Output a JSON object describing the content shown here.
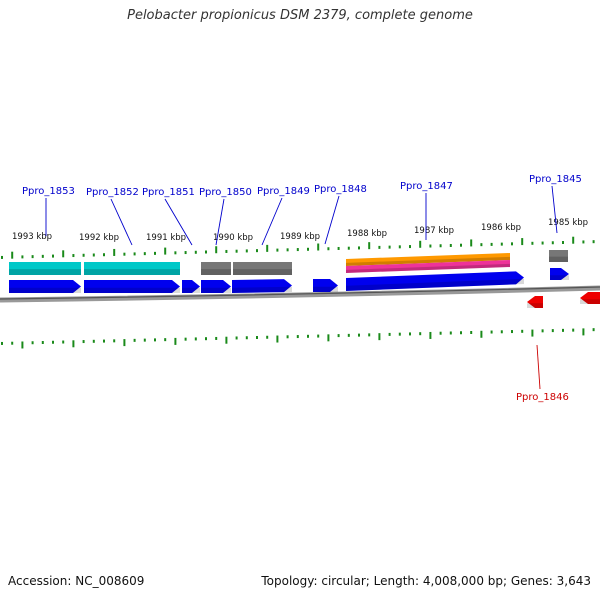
{
  "title": "Pelobacter propionicus DSM 2379, complete genome",
  "footer": {
    "accession": "Accession: NC_008609",
    "summary": "Topology: circular; Length: 4,008,000 bp; Genes: 3,643"
  },
  "colors": {
    "cds_forward": "#0000ee",
    "cds_reverse": "#ee0000",
    "rna": "#00c8c8",
    "gray_feature": "#777777",
    "orange_feature": "#ff9900",
    "magenta_feature": "#ee3399",
    "backbone": "#888888",
    "tick": "#1a8a1a",
    "forward_label": "#0000cc",
    "reverse_label": "#cc0000"
  },
  "scale_labels": [
    "1993 kbp",
    "1992 kbp",
    "1991 kbp",
    "1990 kbp",
    "1989 kbp",
    "1988 kbp",
    "1987 kbp",
    "1986 kbp",
    "1985 kbp"
  ],
  "gene_labels": [
    {
      "name": "Ppro_1853",
      "strand": "forward"
    },
    {
      "name": "Ppro_1852",
      "strand": "forward"
    },
    {
      "name": "Ppro_1851",
      "strand": "forward"
    },
    {
      "name": "Ppro_1850",
      "strand": "forward"
    },
    {
      "name": "Ppro_1849",
      "strand": "forward"
    },
    {
      "name": "Ppro_1848",
      "strand": "forward"
    },
    {
      "name": "Ppro_1847",
      "strand": "forward"
    },
    {
      "name": "Ppro_1845",
      "strand": "forward"
    },
    {
      "name": "Ppro_1846",
      "strand": "reverse"
    }
  ]
}
